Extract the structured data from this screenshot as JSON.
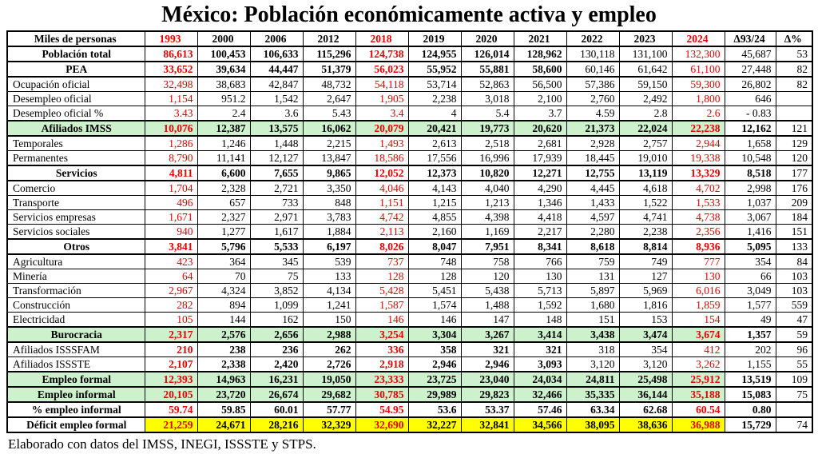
{
  "title": "México: Población económicamente activa y empleo",
  "footer": "Elaborado con datos del IMSS, INEGI, ISSSTE y STPS.",
  "colors": {
    "red": "#e60000",
    "green_bg": "#cdf0cd",
    "yellow_bg": "#ffff00"
  },
  "table": {
    "header": {
      "label": "Miles de personas",
      "cols": [
        "1993",
        "2000",
        "2006",
        "2012",
        "2018",
        "2019",
        "2020",
        "2021",
        "2022",
        "2023",
        "2024",
        "Δ93/24",
        "Δ%"
      ],
      "red_cols": [
        0,
        4,
        10
      ]
    },
    "rows": [
      {
        "label": "Población total",
        "section": true,
        "bg": "",
        "values": [
          "86,613",
          "100,453",
          "106,633",
          "115,296",
          "124,738",
          "124,955",
          "126,014",
          "128,962",
          "130,118",
          "131,100",
          "132,300",
          "45,687",
          "53"
        ],
        "styles": [
          "br",
          "b",
          "b",
          "b",
          "br",
          "b",
          "b",
          "b",
          "",
          "",
          "r",
          "",
          ""
        ]
      },
      {
        "label": "PEA",
        "section": true,
        "bg": "",
        "values": [
          "33,652",
          "39,634",
          "44,447",
          "51,379",
          "56,023",
          "55,952",
          "55,881",
          "58,600",
          "60,146",
          "61,642",
          "61,100",
          "27,448",
          "82"
        ],
        "styles": [
          "br",
          "b",
          "b",
          "b",
          "br",
          "b",
          "b",
          "b",
          "",
          "",
          "r",
          "",
          ""
        ]
      },
      {
        "label": "Ocupación oficial",
        "section": false,
        "bg": "",
        "values": [
          "32,498",
          "38,683",
          "42,847",
          "48,732",
          "54,118",
          "53,714",
          "52,863",
          "56,500",
          "57,386",
          "59,150",
          "59,300",
          "26,802",
          "82"
        ],
        "styles": [
          "r",
          "",
          "",
          "",
          "r",
          "",
          "",
          "",
          "",
          "",
          "r",
          "",
          ""
        ]
      },
      {
        "label": "Desempleo oficial",
        "section": false,
        "bg": "",
        "values": [
          "1,154",
          "951.2",
          "1,542",
          "2,647",
          "1,905",
          "2,238",
          "3,018",
          "2,100",
          "2,760",
          "2,492",
          "1,800",
          "646",
          ""
        ],
        "styles": [
          "r",
          "",
          "",
          "",
          "r",
          "",
          "",
          "",
          "",
          "",
          "r",
          "",
          ""
        ]
      },
      {
        "label": "Desempleo oficial %",
        "section": false,
        "bg": "",
        "values": [
          "3.43",
          "2.4",
          "3.6",
          "5.43",
          "3.4",
          "4",
          "5.4",
          "3.7",
          "4.59",
          "2.8",
          "2.6",
          "- 0.83",
          ""
        ],
        "styles": [
          "r",
          "",
          "",
          "",
          "r",
          "",
          "",
          "",
          "",
          "",
          "r",
          "",
          ""
        ]
      },
      {
        "label": "Afiliados IMSS",
        "section": true,
        "bg": "green",
        "values": [
          "10,076",
          "12,387",
          "13,575",
          "16,062",
          "20,079",
          "20,421",
          "19,773",
          "20,620",
          "21,373",
          "22,024",
          "22,238",
          "12,162",
          "121"
        ],
        "styles": [
          "br",
          "b",
          "b",
          "b",
          "br",
          "b",
          "b",
          "b",
          "b",
          "b",
          "br",
          "b",
          ""
        ]
      },
      {
        "label": "Temporales",
        "section": false,
        "bg": "",
        "values": [
          "1,286",
          "1,246",
          "1,448",
          "2,215",
          "1,493",
          "2,613",
          "2,518",
          "2,681",
          "2,928",
          "2,757",
          "2,944",
          "1,658",
          "129"
        ],
        "styles": [
          "r",
          "",
          "",
          "",
          "r",
          "",
          "",
          "",
          "",
          "",
          "r",
          "",
          ""
        ]
      },
      {
        "label": "Permanentes",
        "section": false,
        "bg": "",
        "values": [
          "8,790",
          "11,141",
          "12,127",
          "13,847",
          "18,586",
          "17,556",
          "16,996",
          "17,939",
          "18,445",
          "19,010",
          "19,338",
          "10,548",
          "120"
        ],
        "styles": [
          "r",
          "",
          "",
          "",
          "r",
          "",
          "",
          "",
          "",
          "",
          "r",
          "",
          ""
        ]
      },
      {
        "label": "Servicios",
        "section": true,
        "bg": "",
        "values": [
          "4,811",
          "6,600",
          "7,655",
          "9,865",
          "12,052",
          "12,373",
          "10,820",
          "12,271",
          "12,755",
          "13,119",
          "13,329",
          "8,518",
          "177"
        ],
        "styles": [
          "br",
          "b",
          "b",
          "b",
          "br",
          "b",
          "b",
          "b",
          "b",
          "b",
          "br",
          "b",
          ""
        ]
      },
      {
        "label": "Comercio",
        "section": false,
        "bg": "",
        "values": [
          "1,704",
          "2,328",
          "2,721",
          "3,350",
          "4,046",
          "4,143",
          "4,040",
          "4,290",
          "4,445",
          "4,618",
          "4,702",
          "2,998",
          "176"
        ],
        "styles": [
          "r",
          "",
          "",
          "",
          "r",
          "",
          "",
          "",
          "",
          "",
          "r",
          "",
          ""
        ]
      },
      {
        "label": "Transporte",
        "section": false,
        "bg": "",
        "values": [
          "496",
          "657",
          "733",
          "848",
          "1,151",
          "1,215",
          "1,213",
          "1,346",
          "1,433",
          "1,522",
          "1,533",
          "1,037",
          "209"
        ],
        "styles": [
          "r",
          "",
          "",
          "",
          "r",
          "",
          "",
          "",
          "",
          "",
          "r",
          "",
          ""
        ]
      },
      {
        "label": "Servicios empresas",
        "section": false,
        "bg": "",
        "values": [
          "1,671",
          "2,327",
          "2,971",
          "3,783",
          "4,742",
          "4,855",
          "4,398",
          "4,418",
          "4,597",
          "4,741",
          "4,738",
          "3,067",
          "184"
        ],
        "styles": [
          "r",
          "",
          "",
          "",
          "r",
          "",
          "",
          "",
          "",
          "",
          "r",
          "",
          ""
        ]
      },
      {
        "label": "Servicios sociales",
        "section": false,
        "bg": "",
        "values": [
          "940",
          "1,277",
          "1,617",
          "1,884",
          "2,113",
          "2,160",
          "1,169",
          "2,217",
          "2,280",
          "2,238",
          "2,356",
          "1,416",
          "151"
        ],
        "styles": [
          "r",
          "",
          "",
          "",
          "r",
          "",
          "",
          "",
          "",
          "",
          "r",
          "",
          ""
        ]
      },
      {
        "label": "Otros",
        "section": true,
        "bg": "",
        "values": [
          "3,841",
          "5,796",
          "5,533",
          "6,197",
          "8,026",
          "8,047",
          "7,951",
          "8,341",
          "8,618",
          "8,814",
          "8,936",
          "5,095",
          "133"
        ],
        "styles": [
          "br",
          "b",
          "b",
          "b",
          "br",
          "b",
          "b",
          "b",
          "b",
          "b",
          "br",
          "b",
          ""
        ]
      },
      {
        "label": "Agricultura",
        "section": false,
        "bg": "",
        "values": [
          "423",
          "364",
          "345",
          "539",
          "737",
          "748",
          "758",
          "766",
          "759",
          "749",
          "777",
          "354",
          "84"
        ],
        "styles": [
          "r",
          "",
          "",
          "",
          "r",
          "",
          "",
          "",
          "",
          "",
          "r",
          "",
          ""
        ]
      },
      {
        "label": "Minería",
        "section": false,
        "bg": "",
        "values": [
          "64",
          "70",
          "75",
          "133",
          "128",
          "128",
          "120",
          "130",
          "131",
          "127",
          "130",
          "66",
          "103"
        ],
        "styles": [
          "r",
          "",
          "",
          "",
          "r",
          "",
          "",
          "",
          "",
          "",
          "r",
          "",
          ""
        ]
      },
      {
        "label": "Transformación",
        "section": false,
        "bg": "",
        "values": [
          "2,967",
          "4,324",
          "3,852",
          "4,134",
          "5,428",
          "5,451",
          "5,438",
          "5,713",
          "5,897",
          "5,969",
          "6,016",
          "3,049",
          "103"
        ],
        "styles": [
          "r",
          "",
          "",
          "",
          "r",
          "",
          "",
          "",
          "",
          "",
          "r",
          "",
          ""
        ]
      },
      {
        "label": "Construcción",
        "section": false,
        "bg": "",
        "values": [
          "282",
          "894",
          "1,099",
          "1,241",
          "1,587",
          "1,574",
          "1,488",
          "1,592",
          "1,680",
          "1,816",
          "1,859",
          "1,577",
          "559"
        ],
        "styles": [
          "r",
          "",
          "",
          "",
          "r",
          "",
          "",
          "",
          "",
          "",
          "r",
          "",
          ""
        ]
      },
      {
        "label": "Electricidad",
        "section": false,
        "bg": "",
        "values": [
          "105",
          "144",
          "162",
          "150",
          "146",
          "146",
          "147",
          "148",
          "151",
          "153",
          "154",
          "49",
          "47"
        ],
        "styles": [
          "r",
          "",
          "",
          "",
          "r",
          "",
          "",
          "",
          "",
          "",
          "r",
          "",
          ""
        ]
      },
      {
        "label": "Burocracia",
        "section": true,
        "bg": "green",
        "values": [
          "2,317",
          "2,576",
          "2,656",
          "2,988",
          "3,254",
          "3,304",
          "3,267",
          "3,414",
          "3,438",
          "3,474",
          "3,674",
          "1,357",
          "59"
        ],
        "styles": [
          "br",
          "b",
          "b",
          "b",
          "br",
          "b",
          "b",
          "b",
          "b",
          "b",
          "br",
          "b",
          ""
        ]
      },
      {
        "label": "Afiliados ISSSFAM",
        "section": false,
        "bg": "",
        "values": [
          "210",
          "238",
          "236",
          "262",
          "336",
          "358",
          "321",
          "321",
          "318",
          "354",
          "412",
          "202",
          "96"
        ],
        "styles": [
          "br",
          "b",
          "b",
          "b",
          "br",
          "b",
          "b",
          "b",
          "",
          "",
          "r",
          "",
          ""
        ]
      },
      {
        "label": "Afiliados ISSSTE",
        "section": false,
        "bg": "",
        "values": [
          "2,107",
          "2,338",
          "2,420",
          "2,726",
          "2,918",
          "2,946",
          "2,946",
          "3,093",
          "3,120",
          "3,120",
          "3,262",
          "1,155",
          "55"
        ],
        "styles": [
          "br",
          "b",
          "b",
          "b",
          "br",
          "b",
          "b",
          "b",
          "",
          "",
          "r",
          "",
          ""
        ]
      },
      {
        "label": "Empleo formal",
        "section": true,
        "bg": "green",
        "values": [
          "12,393",
          "14,963",
          "16,231",
          "19,050",
          "23,333",
          "23,725",
          "23,040",
          "24,034",
          "24,811",
          "25,498",
          "25,912",
          "13,519",
          "109"
        ],
        "styles": [
          "br",
          "b",
          "b",
          "b",
          "br",
          "b",
          "b",
          "b",
          "b",
          "b",
          "br",
          "b",
          ""
        ]
      },
      {
        "label": "Empleo informal",
        "section": true,
        "bg": "green",
        "values": [
          "20,105",
          "23,720",
          "26,674",
          "29,682",
          "30,785",
          "29,989",
          "29,823",
          "32,466",
          "35,335",
          "36,144",
          "35,188",
          "15,083",
          "75"
        ],
        "styles": [
          "br",
          "b",
          "b",
          "b",
          "br",
          "b",
          "b",
          "b",
          "b",
          "b",
          "br",
          "b",
          ""
        ]
      },
      {
        "label": "% empleo informal",
        "section": true,
        "bg": "",
        "values": [
          "59.74",
          "59.85",
          "60.01",
          "57.77",
          "54.95",
          "53.6",
          "53.37",
          "57.46",
          "63.34",
          "62.68",
          "60.54",
          "0.80",
          ""
        ],
        "styles": [
          "br",
          "b",
          "b",
          "b",
          "br",
          "b",
          "b",
          "b",
          "b",
          "b",
          "br",
          "b",
          ""
        ]
      },
      {
        "label": "Déficit empleo formal",
        "section": true,
        "bg": "yellow",
        "values": [
          "21,259",
          "24,671",
          "28,216",
          "32,329",
          "32,690",
          "32,227",
          "32,841",
          "34,566",
          "38,095",
          "38,636",
          "36,988",
          "15,729",
          "74"
        ],
        "styles": [
          "br",
          "b",
          "b",
          "b",
          "br",
          "b",
          "b",
          "b",
          "b",
          "b",
          "br",
          "b",
          ""
        ]
      }
    ]
  }
}
